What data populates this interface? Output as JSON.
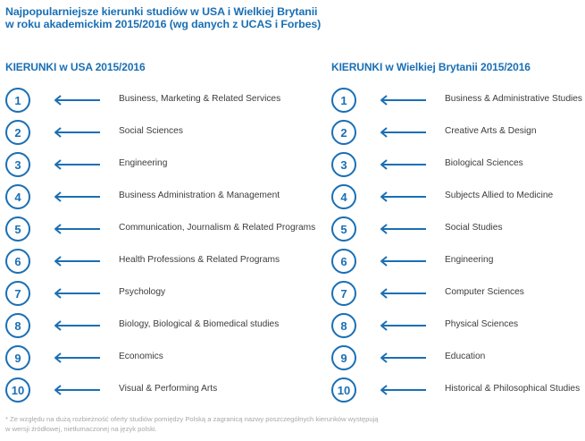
{
  "title": {
    "line1": "Najpopularniejsze kierunki studiów w  USA i Wielkiej Brytanii",
    "line2": "w roku akademickim 2015/2016  (wg danych z UCAS i Forbes)"
  },
  "usa": {
    "heading": "KIERUNKI w USA 2015/2016",
    "items": [
      {
        "rank": "1",
        "label": "Business, Marketing & Related Services"
      },
      {
        "rank": "2",
        "label": "Social Sciences"
      },
      {
        "rank": "3",
        "label": "Engineering"
      },
      {
        "rank": "4",
        "label": "Business Administration & Management"
      },
      {
        "rank": "5",
        "label": "Communication, Journalism & Related Programs"
      },
      {
        "rank": "6",
        "label": "Health Professions & Related Programs"
      },
      {
        "rank": "7",
        "label": "Psychology"
      },
      {
        "rank": "8",
        "label": "Biology, Biological & Biomedical studies"
      },
      {
        "rank": "9",
        "label": "Economics"
      },
      {
        "rank": "10",
        "label": "Visual & Performing Arts"
      }
    ]
  },
  "uk": {
    "heading": "KIERUNKI w Wielkiej Brytanii 2015/2016",
    "items": [
      {
        "rank": "1",
        "label": "Business & Administrative Studies"
      },
      {
        "rank": "2",
        "label": "Creative Arts & Design"
      },
      {
        "rank": "3",
        "label": "Biological Sciences"
      },
      {
        "rank": "4",
        "label": "Subjects Allied to Medicine"
      },
      {
        "rank": "5",
        "label": "Social Studies"
      },
      {
        "rank": "6",
        "label": "Engineering"
      },
      {
        "rank": "7",
        "label": "Computer Sciences"
      },
      {
        "rank": "8",
        "label": "Physical Sciences"
      },
      {
        "rank": "9",
        "label": "Education"
      },
      {
        "rank": "10",
        "label": "Historical & Philosophical Studies"
      }
    ]
  },
  "footnote": {
    "line1": "*  Ze względu na dużą rozbieżność oferty studiów pomiędzy Polską a zagranicą nazwy poszczególnych kierunków występują",
    "line2": "   w wersji źródłowej, nietłumaczonej na język polski."
  },
  "colors": {
    "accent": "#1a6fb4",
    "text": "#3c3c3c",
    "muted": "#a8a8a8"
  },
  "icons": {
    "arrow": "arrow-left-icon"
  }
}
